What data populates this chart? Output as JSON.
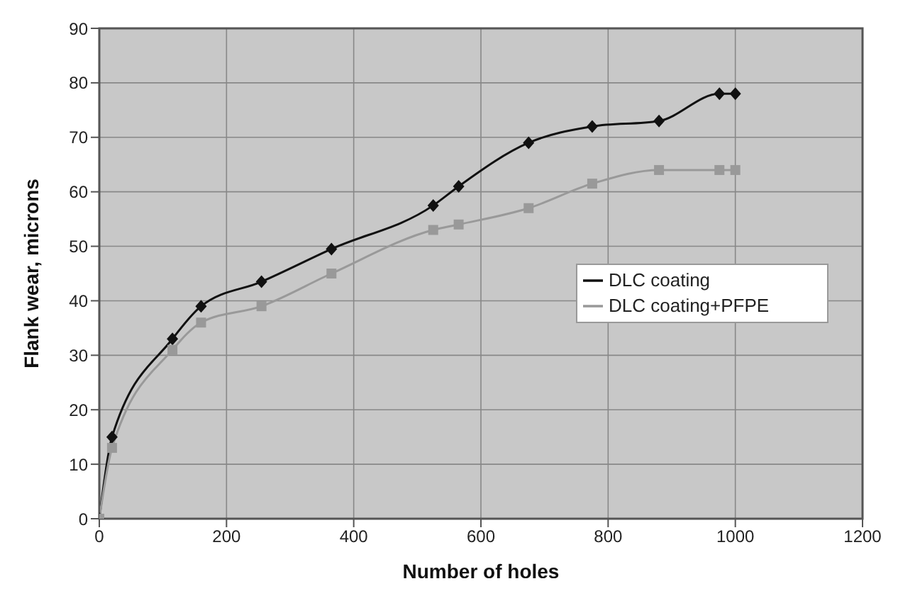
{
  "chart_data": {
    "type": "line",
    "xlabel": "Number of holes",
    "ylabel": "Flank wear, microns",
    "x": [
      0,
      20,
      115,
      160,
      255,
      365,
      525,
      565,
      675,
      775,
      880,
      975,
      1000
    ],
    "series": [
      {
        "name": "DLC coating",
        "color": "#111111",
        "marker": "diamond",
        "values": [
          0,
          15,
          33,
          39,
          43.5,
          49.5,
          57.5,
          61,
          69,
          72,
          73,
          78,
          78
        ]
      },
      {
        "name": "DLC coating+PFPE",
        "color": "#999999",
        "marker": "square",
        "values": [
          0,
          13,
          31,
          36,
          39,
          45,
          53,
          54,
          57,
          61.5,
          64,
          64,
          64
        ]
      }
    ],
    "xlim": [
      0,
      1200
    ],
    "xticks": [
      0,
      200,
      400,
      600,
      800,
      1000,
      1200
    ],
    "ylim": [
      0,
      90
    ],
    "yticks": [
      0,
      10,
      20,
      30,
      40,
      50,
      60,
      70,
      80,
      90
    ],
    "grid": true,
    "legend": "right",
    "line_style": "solid"
  }
}
